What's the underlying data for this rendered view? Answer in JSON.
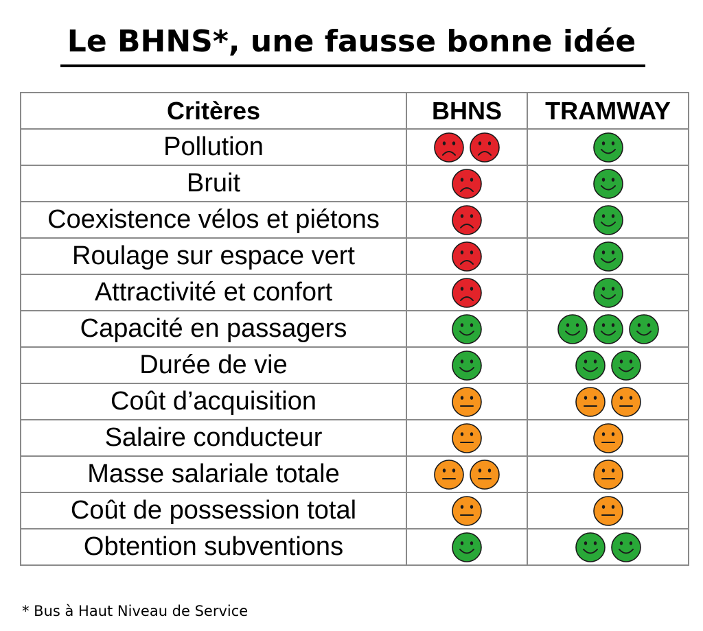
{
  "title": "Le BHNS*, une fausse bonne idée",
  "table": {
    "headers": [
      "Critères",
      "BHNS",
      "TRAMWAY"
    ],
    "rows": [
      {
        "criterion": "Pollution",
        "bhns": {
          "mood": "sad",
          "count": 2
        },
        "tramway": {
          "mood": "happy",
          "count": 1
        }
      },
      {
        "criterion": "Bruit",
        "bhns": {
          "mood": "sad",
          "count": 1
        },
        "tramway": {
          "mood": "happy",
          "count": 1
        }
      },
      {
        "criterion": "Coexistence vélos et piétons",
        "bhns": {
          "mood": "sad",
          "count": 1
        },
        "tramway": {
          "mood": "happy",
          "count": 1
        }
      },
      {
        "criterion": "Roulage sur espace vert",
        "bhns": {
          "mood": "sad",
          "count": 1
        },
        "tramway": {
          "mood": "happy",
          "count": 1
        }
      },
      {
        "criterion": "Attractivité et confort",
        "bhns": {
          "mood": "sad",
          "count": 1
        },
        "tramway": {
          "mood": "happy",
          "count": 1
        }
      },
      {
        "criterion": "Capacité en passagers",
        "bhns": {
          "mood": "happy",
          "count": 1
        },
        "tramway": {
          "mood": "happy",
          "count": 3
        }
      },
      {
        "criterion": "Durée de vie",
        "bhns": {
          "mood": "happy",
          "count": 1
        },
        "tramway": {
          "mood": "happy",
          "count": 2
        }
      },
      {
        "criterion": "Coût d’acquisition",
        "bhns": {
          "mood": "neutral",
          "count": 1
        },
        "tramway": {
          "mood": "neutral",
          "count": 2
        }
      },
      {
        "criterion": "Salaire conducteur",
        "bhns": {
          "mood": "neutral",
          "count": 1
        },
        "tramway": {
          "mood": "neutral",
          "count": 1
        }
      },
      {
        "criterion": "Masse salariale totale",
        "bhns": {
          "mood": "neutral",
          "count": 2
        },
        "tramway": {
          "mood": "neutral",
          "count": 1
        }
      },
      {
        "criterion": "Coût de possession total",
        "bhns": {
          "mood": "neutral",
          "count": 1
        },
        "tramway": {
          "mood": "neutral",
          "count": 1
        }
      },
      {
        "criterion": "Obtention subventions",
        "bhns": {
          "mood": "happy",
          "count": 1
        },
        "tramway": {
          "mood": "happy",
          "count": 2
        }
      }
    ]
  },
  "moods": {
    "sad": {
      "icon": "sad-face-icon",
      "color": "#e3232a"
    },
    "happy": {
      "icon": "smiley-face-icon",
      "color": "#29a838"
    },
    "neutral": {
      "icon": "neutral-face-icon",
      "color": "#f7941d"
    }
  },
  "footnote": "* Bus à Haut Niveau de Service"
}
